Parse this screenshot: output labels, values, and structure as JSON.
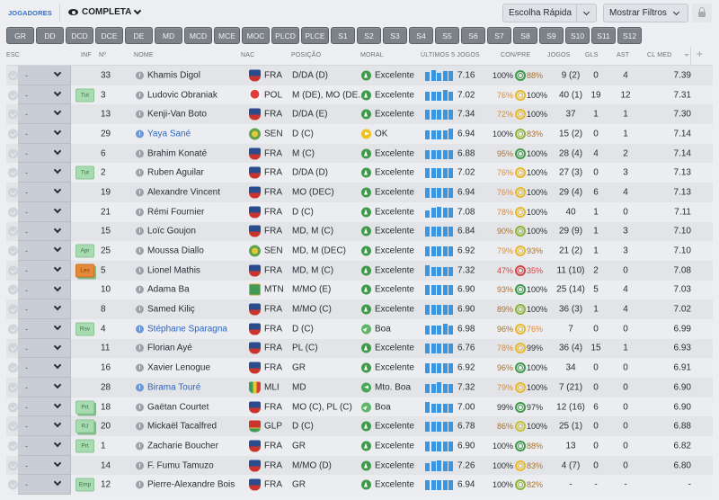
{
  "topbar": {
    "section_title": "JOGADORES",
    "view_label": "COMPLETA",
    "quick_pick_label": "Escolha Rápida",
    "filters_label": "Mostrar Filtros"
  },
  "position_filters": [
    "GR",
    "DD",
    "DCD",
    "DCE",
    "DE",
    "MD",
    "MCD",
    "MCE",
    "MOC",
    "PLCD",
    "PLCE",
    "S1",
    "S2",
    "S3",
    "S4",
    "S5",
    "S6",
    "S7",
    "S8",
    "S9",
    "S10",
    "S11",
    "S12"
  ],
  "columns": {
    "esc": "ESC",
    "inf": "INF",
    "num": "Nº",
    "name": "NOME",
    "nac": "NAC",
    "pos": "POSIÇÃO",
    "moral": "MORAL",
    "last5": "ÚLTIMOS 5 JOGOS",
    "conpre": "CON/PRE",
    "jogos": "JOGOS",
    "gls": "GLS",
    "ast": "AST",
    "clmed": "CL MED",
    "add": "+"
  },
  "colors": {
    "accent": "#3a6fc4",
    "bar_blue": "#3a96e0",
    "moral_green": "#3e9a4a",
    "moral_yellow": "#f2c21b",
    "badge_green": "#a8dcb0",
    "badge_orange": "#e58a3a"
  },
  "players": [
    {
      "esc": "-",
      "inf": "",
      "inf_style": "",
      "num": "33",
      "name": "Khamis Digol",
      "link": false,
      "flag": "fra",
      "nac": "FRA",
      "pos": "D/DA (D)",
      "moral_icon": "exc",
      "moral": "Excelente",
      "bars": [
        10,
        12,
        9,
        11,
        11
      ],
      "last5": "7.16",
      "con": "100%",
      "con_color": "c-green",
      "ring": "#3e9a4a",
      "pre": "88%",
      "pre_color": "c-brown",
      "jogos": "9 (2)",
      "gls": "0",
      "ast": "4",
      "clmed": "7.39"
    },
    {
      "esc": "-",
      "inf": "Tut",
      "inf_style": "inf-green",
      "num": "3",
      "name": "Ludovic Obraniak",
      "link": false,
      "flag": "pol",
      "nac": "POL",
      "pos": "M (DE), MO (DE...",
      "moral_icon": "exc",
      "moral": "Excelente",
      "bars": [
        10,
        10,
        10,
        12,
        10
      ],
      "last5": "7.02",
      "con": "76%",
      "con_color": "c-orange",
      "ring": "#e6b92e",
      "pre": "100%",
      "pre_color": "c-green",
      "jogos": "40 (1)",
      "gls": "19",
      "ast": "12",
      "clmed": "7.31"
    },
    {
      "esc": "-",
      "inf": "",
      "inf_style": "",
      "num": "13",
      "name": "Kenji-Van Boto",
      "link": false,
      "flag": "fra",
      "nac": "FRA",
      "pos": "D/DA (E)",
      "moral_icon": "exc",
      "moral": "Excelente",
      "bars": [
        11,
        11,
        11,
        11,
        11
      ],
      "last5": "7.34",
      "con": "72%",
      "con_color": "c-orange",
      "ring": "#e6b92e",
      "pre": "100%",
      "pre_color": "c-green",
      "jogos": "37",
      "gls": "1",
      "ast": "1",
      "clmed": "7.30"
    },
    {
      "esc": "-",
      "inf": "",
      "inf_style": "",
      "num": "29",
      "name": "Yaya Sané",
      "link": true,
      "flag": "sen",
      "nac": "SEN",
      "pos": "D (C)",
      "moral_icon": "ok",
      "moral": "OK",
      "bars": [
        10,
        10,
        10,
        10,
        12
      ],
      "last5": "6.94",
      "con": "100%",
      "con_color": "c-green",
      "ring": "#8fb33a",
      "pre": "83%",
      "pre_color": "c-brown",
      "jogos": "15 (2)",
      "gls": "0",
      "ast": "1",
      "clmed": "7.14"
    },
    {
      "esc": "-",
      "inf": "",
      "inf_style": "",
      "num": "6",
      "name": "Brahim Konaté",
      "link": false,
      "flag": "fra",
      "nac": "FRA",
      "pos": "M (C)",
      "moral_icon": "exc",
      "moral": "Excelente",
      "bars": [
        10,
        10,
        10,
        10,
        10
      ],
      "last5": "6.88",
      "con": "95%",
      "con_color": "c-brown",
      "ring": "#3e9a4a",
      "pre": "100%",
      "pre_color": "c-green",
      "jogos": "28 (4)",
      "gls": "4",
      "ast": "2",
      "clmed": "7.14"
    },
    {
      "esc": "-",
      "inf": "Tut",
      "inf_style": "inf-green",
      "num": "2",
      "name": "Ruben Aguilar",
      "link": false,
      "flag": "fra",
      "nac": "FRA",
      "pos": "D/DA (D)",
      "moral_icon": "exc",
      "moral": "Excelente",
      "bars": [
        11,
        11,
        11,
        11,
        11
      ],
      "last5": "7.02",
      "con": "76%",
      "con_color": "c-orange",
      "ring": "#e6b92e",
      "pre": "100%",
      "pre_color": "c-green",
      "jogos": "27 (3)",
      "gls": "0",
      "ast": "3",
      "clmed": "7.13"
    },
    {
      "esc": "-",
      "inf": "",
      "inf_style": "",
      "num": "19",
      "name": "Alexandre Vincent",
      "link": false,
      "flag": "fra",
      "nac": "FRA",
      "pos": "MO (DEC)",
      "moral_icon": "exc",
      "moral": "Excelente",
      "bars": [
        11,
        11,
        11,
        11,
        11
      ],
      "last5": "6.94",
      "con": "76%",
      "con_color": "c-orange",
      "ring": "#e6b92e",
      "pre": "100%",
      "pre_color": "c-green",
      "jogos": "29 (4)",
      "gls": "6",
      "ast": "4",
      "clmed": "7.13"
    },
    {
      "esc": "-",
      "inf": "",
      "inf_style": "",
      "num": "21",
      "name": "Rémi Fournier",
      "link": false,
      "flag": "fra",
      "nac": "FRA",
      "pos": "D (C)",
      "moral_icon": "exc",
      "moral": "Excelente",
      "bars": [
        8,
        11,
        12,
        11,
        11
      ],
      "last5": "7.08",
      "con": "78%",
      "con_color": "c-orange",
      "ring": "#e6b92e",
      "pre": "100%",
      "pre_color": "c-green",
      "jogos": "40",
      "gls": "1",
      "ast": "0",
      "clmed": "7.11"
    },
    {
      "esc": "-",
      "inf": "",
      "inf_style": "",
      "num": "15",
      "name": "Loïc Goujon",
      "link": false,
      "flag": "fra",
      "nac": "FRA",
      "pos": "MD, M (C)",
      "moral_icon": "exc",
      "moral": "Excelente",
      "bars": [
        11,
        11,
        11,
        11,
        11
      ],
      "last5": "6.84",
      "con": "90%",
      "con_color": "c-brown",
      "ring": "#8fb33a",
      "pre": "100%",
      "pre_color": "c-green",
      "jogos": "29 (9)",
      "gls": "1",
      "ast": "3",
      "clmed": "7.10"
    },
    {
      "esc": "-",
      "inf": "Apr",
      "inf_style": "inf-green",
      "num": "25",
      "name": "Moussa Diallo",
      "link": false,
      "flag": "sen",
      "nac": "SEN",
      "pos": "MD, M (DEC)",
      "moral_icon": "exc",
      "moral": "Excelente",
      "bars": [
        11,
        11,
        11,
        11,
        11
      ],
      "last5": "6.92",
      "con": "79%",
      "con_color": "c-orange",
      "ring": "#e6b92e",
      "pre": "93%",
      "pre_color": "c-brown",
      "jogos": "21 (2)",
      "gls": "1",
      "ast": "3",
      "clmed": "7.10"
    },
    {
      "esc": "-",
      "inf": "Les",
      "inf_style": "inf-orange",
      "num": "5",
      "name": "Lionel Mathis",
      "link": false,
      "flag": "fra",
      "nac": "FRA",
      "pos": "MD, M (C)",
      "moral_icon": "exc",
      "moral": "Excelente",
      "bars": [
        12,
        10,
        10,
        10,
        10
      ],
      "last5": "7.32",
      "con": "47%",
      "con_color": "c-red",
      "ring": "#d64545",
      "pre": "35%",
      "pre_color": "c-red",
      "jogos": "11 (10)",
      "gls": "2",
      "ast": "0",
      "clmed": "7.08"
    },
    {
      "esc": "-",
      "inf": "",
      "inf_style": "",
      "num": "10",
      "name": "Adama Ba",
      "link": false,
      "flag": "mtn",
      "nac": "MTN",
      "pos": "M/MO (E)",
      "moral_icon": "exc",
      "moral": "Excelente",
      "bars": [
        11,
        11,
        11,
        11,
        11
      ],
      "last5": "6.90",
      "con": "93%",
      "con_color": "c-brown",
      "ring": "#3e9a4a",
      "pre": "100%",
      "pre_color": "c-green",
      "jogos": "25 (14)",
      "gls": "5",
      "ast": "4",
      "clmed": "7.03"
    },
    {
      "esc": "-",
      "inf": "",
      "inf_style": "",
      "num": "8",
      "name": "Samed Kiliç",
      "link": false,
      "flag": "fra",
      "nac": "FRA",
      "pos": "M/MO (C)",
      "moral_icon": "exc",
      "moral": "Excelente",
      "bars": [
        11,
        11,
        11,
        11,
        11
      ],
      "last5": "6.90",
      "con": "89%",
      "con_color": "c-brown",
      "ring": "#8fb33a",
      "pre": "100%",
      "pre_color": "c-green",
      "jogos": "36 (3)",
      "gls": "1",
      "ast": "4",
      "clmed": "7.02"
    },
    {
      "esc": "-",
      "inf": "Rsv",
      "inf_style": "inf-green",
      "num": "4",
      "name": "Stéphane Sparagna",
      "link": true,
      "flag": "fra",
      "nac": "FRA",
      "pos": "D (C)",
      "moral_icon": "boa",
      "moral": "Boa",
      "bars": [
        10,
        10,
        10,
        12,
        10
      ],
      "last5": "6.98",
      "con": "96%",
      "con_color": "c-brown",
      "ring": "#e6b92e",
      "pre": "76%",
      "pre_color": "c-orange",
      "jogos": "7",
      "gls": "0",
      "ast": "0",
      "clmed": "6.99"
    },
    {
      "esc": "-",
      "inf": "",
      "inf_style": "",
      "num": "11",
      "name": "Florian Ayé",
      "link": false,
      "flag": "fra",
      "nac": "FRA",
      "pos": "PL (C)",
      "moral_icon": "exc",
      "moral": "Excelente",
      "bars": [
        11,
        11,
        11,
        11,
        11
      ],
      "last5": "6.76",
      "con": "78%",
      "con_color": "c-orange",
      "ring": "#e6b92e",
      "pre": "99%",
      "pre_color": "c-green",
      "jogos": "36 (4)",
      "gls": "15",
      "ast": "1",
      "clmed": "6.93"
    },
    {
      "esc": "-",
      "inf": "",
      "inf_style": "",
      "num": "16",
      "name": "Xavier Lenogue",
      "link": false,
      "flag": "fra",
      "nac": "FRA",
      "pos": "GR",
      "moral_icon": "exc",
      "moral": "Excelente",
      "bars": [
        11,
        11,
        11,
        11,
        11
      ],
      "last5": "6.92",
      "con": "96%",
      "con_color": "c-brown",
      "ring": "#3e9a4a",
      "pre": "100%",
      "pre_color": "c-green",
      "jogos": "34",
      "gls": "0",
      "ast": "0",
      "clmed": "6.91"
    },
    {
      "esc": "-",
      "inf": "",
      "inf_style": "",
      "num": "28",
      "name": "Birama Touré",
      "link": true,
      "flag": "mli",
      "nac": "MLI",
      "pos": "MD",
      "moral_icon": "mto",
      "moral": "Mto. Boa",
      "bars": [
        10,
        10,
        12,
        10,
        10
      ],
      "last5": "7.32",
      "con": "79%",
      "con_color": "c-orange",
      "ring": "#e6b92e",
      "pre": "100%",
      "pre_color": "c-green",
      "jogos": "7 (21)",
      "gls": "0",
      "ast": "0",
      "clmed": "6.90"
    },
    {
      "esc": "-",
      "inf": "Prt",
      "inf_style": "inf-green-stack",
      "num": "18",
      "name": "Gaëtan Courtet",
      "link": false,
      "flag": "fra",
      "nac": "FRA",
      "pos": "MO (C), PL (C)",
      "moral_icon": "boa",
      "moral": "Boa",
      "bars": [
        12,
        10,
        10,
        10,
        10
      ],
      "last5": "7.00",
      "con": "99%",
      "con_color": "c-green",
      "ring": "#3e9a4a",
      "pre": "97%",
      "pre_color": "c-green",
      "jogos": "12 (16)",
      "gls": "6",
      "ast": "0",
      "clmed": "6.90"
    },
    {
      "esc": "-",
      "inf": "RJ",
      "inf_style": "inf-green-stack",
      "num": "20",
      "name": "Mickaël Tacalfred",
      "link": false,
      "flag": "glp",
      "nac": "GLP",
      "pos": "D (C)",
      "moral_icon": "exc",
      "moral": "Excelente",
      "bars": [
        11,
        11,
        11,
        11,
        11
      ],
      "last5": "6.78",
      "con": "86%",
      "con_color": "c-brown",
      "ring": "#c5c13a",
      "pre": "100%",
      "pre_color": "c-green",
      "jogos": "25 (1)",
      "gls": "0",
      "ast": "0",
      "clmed": "6.88"
    },
    {
      "esc": "-",
      "inf": "Prt",
      "inf_style": "inf-green",
      "num": "1",
      "name": "Zacharie Boucher",
      "link": false,
      "flag": "fra",
      "nac": "FRA",
      "pos": "GR",
      "moral_icon": "exc",
      "moral": "Excelente",
      "bars": [
        11,
        11,
        11,
        11,
        11
      ],
      "last5": "6.90",
      "con": "100%",
      "con_color": "c-green",
      "ring": "#3e9a4a",
      "pre": "88%",
      "pre_color": "c-brown",
      "jogos": "13",
      "gls": "0",
      "ast": "0",
      "clmed": "6.82"
    },
    {
      "esc": "-",
      "inf": "",
      "inf_style": "",
      "num": "14",
      "name": "F. Fumu Tamuzo",
      "link": false,
      "flag": "fra",
      "nac": "FRA",
      "pos": "M/MO (D)",
      "moral_icon": "exc",
      "moral": "Excelente",
      "bars": [
        9,
        11,
        12,
        11,
        11
      ],
      "last5": "7.26",
      "con": "100%",
      "con_color": "c-green",
      "ring": "#e6b92e",
      "pre": "83%",
      "pre_color": "c-brown",
      "jogos": "4 (7)",
      "gls": "0",
      "ast": "0",
      "clmed": "6.80"
    },
    {
      "esc": "-",
      "inf": "Emp",
      "inf_style": "inf-green",
      "num": "12",
      "name": "Pierre-Alexandre Bois",
      "link": false,
      "flag": "fra",
      "nac": "FRA",
      "pos": "GR",
      "moral_icon": "exc",
      "moral": "Excelente",
      "bars": [
        11,
        11,
        11,
        11,
        11
      ],
      "last5": "6.94",
      "con": "100%",
      "con_color": "c-green",
      "ring": "#8fb33a",
      "pre": "82%",
      "pre_color": "c-brown",
      "jogos": "-",
      "gls": "-",
      "ast": "-",
      "clmed": "-"
    }
  ]
}
